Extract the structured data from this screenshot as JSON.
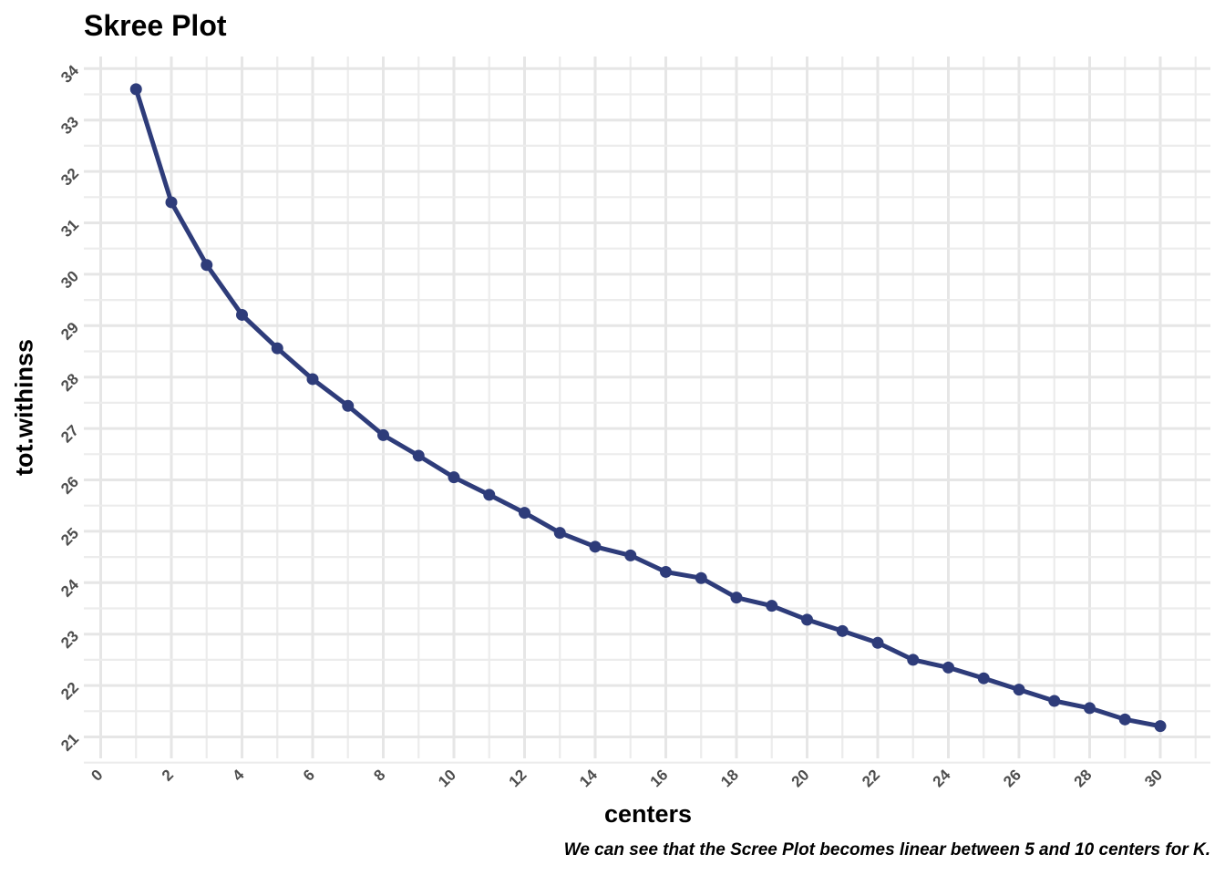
{
  "chart_data": {
    "type": "line",
    "title": "Skree Plot",
    "xlabel": "centers",
    "ylabel": "tot.withinss",
    "caption": "We can see that the Scree Plot becomes linear between 5 and 10 centers for K.",
    "xlim": [
      0,
      31
    ],
    "ylim": [
      21,
      34
    ],
    "x_ticks": [
      0,
      2,
      4,
      6,
      8,
      10,
      12,
      14,
      16,
      18,
      20,
      22,
      24,
      26,
      28,
      30
    ],
    "y_ticks": [
      21,
      22,
      23,
      24,
      25,
      26,
      27,
      28,
      29,
      30,
      31,
      32,
      33,
      34
    ],
    "grid": true,
    "line_color": "#2e3c7a",
    "series": [
      {
        "x": [
          1,
          2,
          3,
          4,
          5,
          6,
          7,
          8,
          9,
          10,
          11,
          12,
          13,
          14,
          15,
          16,
          17,
          18,
          19,
          20,
          21,
          22,
          23,
          24,
          25,
          26,
          27,
          28,
          29,
          30
        ],
        "values": [
          33.6,
          31.4,
          30.18,
          29.21,
          28.56,
          27.96,
          27.44,
          26.87,
          26.47,
          26.05,
          25.71,
          25.36,
          24.97,
          24.7,
          24.53,
          24.21,
          24.09,
          23.71,
          23.55,
          23.28,
          23.06,
          22.83,
          22.5,
          22.35,
          22.14,
          21.92,
          21.7,
          21.56,
          21.34,
          21.21
        ]
      }
    ]
  }
}
